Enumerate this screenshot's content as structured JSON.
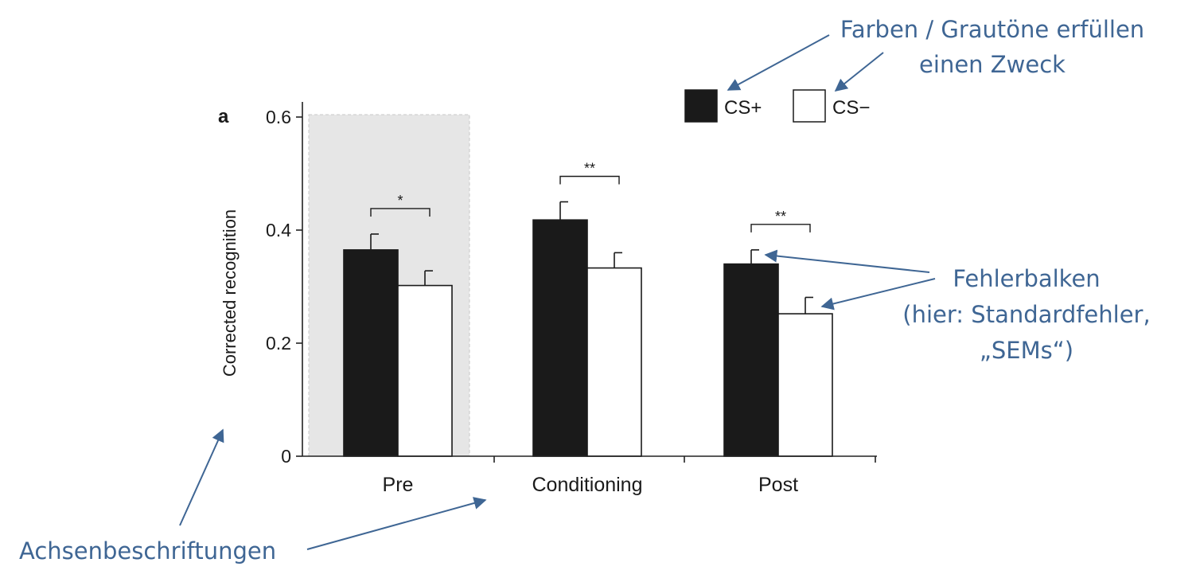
{
  "panel_label": "a",
  "chart_data": {
    "type": "bar",
    "categories": [
      "Pre",
      "Conditioning",
      "Post"
    ],
    "series": [
      {
        "name": "CS+",
        "values": [
          0.365,
          0.418,
          0.34
        ],
        "sem": [
          0.028,
          0.032,
          0.025
        ],
        "color": "#1a1a1a"
      },
      {
        "name": "CS−",
        "values": [
          0.302,
          0.333,
          0.252
        ],
        "sem": [
          0.026,
          0.027,
          0.029
        ],
        "color": "#ffffff"
      }
    ],
    "ylabel": "Corrected recognition",
    "xlabel": "",
    "ylim": [
      0,
      0.6
    ],
    "yticks": [
      0,
      0.2,
      0.4,
      0.6
    ],
    "ytick_labels": [
      "0",
      "0.2",
      "0.4",
      "0.6"
    ],
    "shaded_category": "Pre",
    "shade_color": "#e6e6e6",
    "significance": [
      {
        "category": "Pre",
        "label": "*"
      },
      {
        "category": "Conditioning",
        "label": "**"
      },
      {
        "category": "Post",
        "label": "**"
      }
    ],
    "legend_position": "top-right"
  },
  "annotations": {
    "colors": {
      "line1": "Farben / Grautöne erfüllen",
      "line2": "einen Zweck"
    },
    "error_bars": {
      "line1": "Fehlerbalken",
      "line2": "(hier: Standardfehler,",
      "line3": "„SEMs“)"
    },
    "axis_labels": {
      "text": "Achsenbeschriftungen"
    },
    "color": "#3f6694"
  }
}
